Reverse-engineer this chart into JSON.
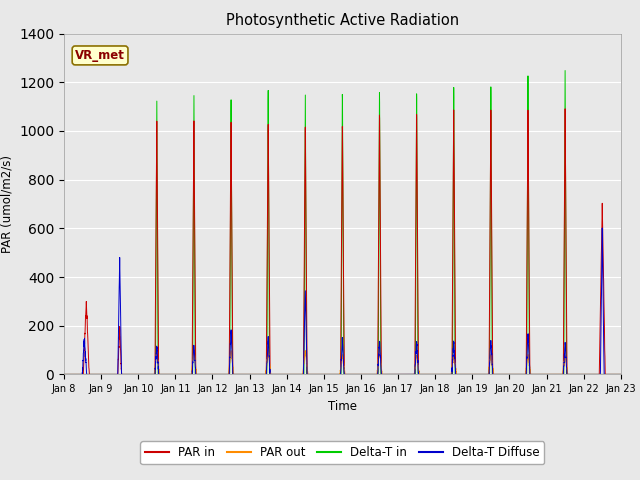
{
  "title": "Photosynthetic Active Radiation",
  "xlabel": "Time",
  "ylabel": "PAR (umol/m2/s)",
  "ylim": [
    0,
    1400
  ],
  "yticks": [
    0,
    200,
    400,
    600,
    800,
    1000,
    1200,
    1400
  ],
  "label_box": "VR_met",
  "legend_entries": [
    "PAR in",
    "PAR out",
    "Delta-T in",
    "Delta-T Diffuse"
  ],
  "colors": {
    "par_in": "#cc0000",
    "par_out": "#ff8c00",
    "delta_t_in": "#00cc00",
    "delta_t_diffuse": "#0000cc"
  },
  "fig_bg": "#e8e8e8",
  "plot_bg": "#e8e8e8",
  "grid_color": "#ffffff",
  "tick_labels": [
    "Jan 8",
    "Jan 9",
    "Jan 10",
    "Jan 11",
    "Jan 12",
    "Jan 13",
    "Jan 14",
    "Jan 15",
    "Jan 16",
    "Jan 17",
    "Jan 18",
    "Jan 19",
    "Jan 20",
    "Jan 21",
    "Jan 22",
    "Jan 23"
  ],
  "n_days": 15
}
